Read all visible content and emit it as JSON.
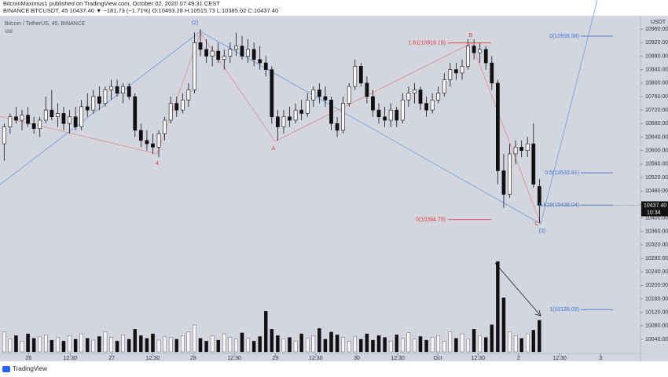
{
  "header": {
    "line1": "BitcoinMaximus1 published on TradingView.com, October 02, 2020 07:49:31 CEST",
    "line2": "BINANCE:BTCUSDT, 45  10437.40 ▼ −181.73 (−1.71%)  O:10493.28  H:10515.73  L:10385.02  C:10437.40"
  },
  "footer": "TradingView",
  "chart_data": {
    "type": "candlestick",
    "legend": "Bitcoin / TetherUS, 45, BINANCE",
    "volume_label": "Vol",
    "currency": "USDT",
    "xlim": [
      -0.7,
      107
    ],
    "ylim": [
      9998,
      11000
    ],
    "grid": false,
    "xticks": [
      {
        "value": 4.1,
        "label": "26"
      },
      {
        "value": 11.1,
        "label": "12:30"
      },
      {
        "value": 18.1,
        "label": "27"
      },
      {
        "value": 25.0,
        "label": "12:30"
      },
      {
        "value": 31.8,
        "label": "28"
      },
      {
        "value": 38.7,
        "label": "12:30"
      },
      {
        "value": 45.6,
        "label": "29"
      },
      {
        "value": 52.4,
        "label": "12:30"
      },
      {
        "value": 59.3,
        "label": "30"
      },
      {
        "value": 66.2,
        "label": "12:30"
      },
      {
        "value": 72.9,
        "label": "Oct"
      },
      {
        "value": 79.7,
        "label": "12:30"
      },
      {
        "value": 86.5,
        "label": "2"
      },
      {
        "value": 93.4,
        "label": "12:30"
      },
      {
        "value": 100.3,
        "label": "3"
      }
    ],
    "yticks": [
      {
        "value": 10960,
        "label": "10960.00"
      },
      {
        "value": 10920,
        "label": "10920.00"
      },
      {
        "value": 10880,
        "label": "10880.00"
      },
      {
        "value": 10840,
        "label": "10840.00"
      },
      {
        "value": 10800,
        "label": "10800.00"
      },
      {
        "value": 10760,
        "label": "10760.00"
      },
      {
        "value": 10720,
        "label": "10720.00"
      },
      {
        "value": 10680,
        "label": "10680.00"
      },
      {
        "value": 10640,
        "label": "10640.00"
      },
      {
        "value": 10600,
        "label": "10600.00"
      },
      {
        "value": 10560,
        "label": "10560.00"
      },
      {
        "value": 10520,
        "label": "10520.00"
      },
      {
        "value": 10480,
        "label": "10480.00"
      },
      {
        "value": 10440,
        "label": "10440.00"
      },
      {
        "value": 10400,
        "label": "10400.00"
      },
      {
        "value": 10360,
        "label": "10360.00"
      },
      {
        "value": 10320,
        "label": "10320.00"
      },
      {
        "value": 10280,
        "label": "10280.00"
      },
      {
        "value": 10240,
        "label": "10240.00"
      },
      {
        "value": 10200,
        "label": "10200.00"
      },
      {
        "value": 10160,
        "label": "10160.00"
      },
      {
        "value": 10120,
        "label": "10120.00"
      },
      {
        "value": 10080,
        "label": "10080.00"
      },
      {
        "value": 10040,
        "label": "10040.00"
      }
    ],
    "last_price": {
      "value": 10437.4,
      "label": "10437.40"
    },
    "countdown": "10:34",
    "fib_red": [
      {
        "value": 10919.19,
        "label": "1.61(10919.19)"
      },
      {
        "value": 10394.79,
        "label": "0(10394.79)"
      }
    ],
    "fib_blue": [
      {
        "value": 10939.58,
        "label": "0(10939.58)"
      },
      {
        "value": 10533.81,
        "label": "0.5(10533.81)"
      },
      {
        "value": 10438.04,
        "label": "0.618(10438.04)"
      },
      {
        "value": 10128.03,
        "label": "1(10128.03)"
      }
    ],
    "wave_labels": [
      "(2)",
      "4",
      "A",
      "B",
      "C",
      "(3)"
    ],
    "ohlc": [
      [
        10620,
        10680,
        10570,
        10670
      ],
      [
        10670,
        10710,
        10650,
        10700
      ],
      [
        10700,
        10730,
        10680,
        10690
      ],
      [
        10690,
        10720,
        10660,
        10705
      ],
      [
        10705,
        10730,
        10670,
        10680
      ],
      [
        10680,
        10700,
        10650,
        10665
      ],
      [
        10665,
        10700,
        10640,
        10690
      ],
      [
        10690,
        10760,
        10680,
        10720
      ],
      [
        10720,
        10780,
        10690,
        10700
      ],
      [
        10700,
        10740,
        10670,
        10710
      ],
      [
        10710,
        10730,
        10660,
        10680
      ],
      [
        10680,
        10720,
        10650,
        10700
      ],
      [
        10700,
        10730,
        10660,
        10670
      ],
      [
        10670,
        10750,
        10660,
        10730
      ],
      [
        10730,
        10770,
        10700,
        10720
      ],
      [
        10720,
        10780,
        10710,
        10760
      ],
      [
        10760,
        10790,
        10720,
        10740
      ],
      [
        10740,
        10790,
        10730,
        10780
      ],
      [
        10780,
        10810,
        10750,
        10790
      ],
      [
        10790,
        10810,
        10760,
        10770
      ],
      [
        10770,
        10800,
        10740,
        10790
      ],
      [
        10790,
        10800,
        10750,
        10760
      ],
      [
        10760,
        10770,
        10640,
        10660
      ],
      [
        10660,
        10680,
        10610,
        10630
      ],
      [
        10630,
        10660,
        10600,
        10620
      ],
      [
        10620,
        10650,
        10590,
        10610
      ],
      [
        10610,
        10660,
        10580,
        10650
      ],
      [
        10650,
        10700,
        10630,
        10690
      ],
      [
        10690,
        10760,
        10680,
        10740
      ],
      [
        10740,
        10760,
        10700,
        10720
      ],
      [
        10720,
        10770,
        10710,
        10750
      ],
      [
        10750,
        10800,
        10730,
        10780
      ],
      [
        10780,
        10950,
        10770,
        10920
      ],
      [
        10920,
        10960,
        10880,
        10900
      ],
      [
        10900,
        10930,
        10860,
        10880
      ],
      [
        10880,
        10910,
        10850,
        10895
      ],
      [
        10895,
        10920,
        10860,
        10870
      ],
      [
        10870,
        10900,
        10840,
        10880
      ],
      [
        10880,
        10920,
        10860,
        10900
      ],
      [
        10900,
        10950,
        10880,
        10910
      ],
      [
        10910,
        10940,
        10870,
        10880
      ],
      [
        10880,
        10930,
        10860,
        10900
      ],
      [
        10900,
        10920,
        10850,
        10870
      ],
      [
        10870,
        10910,
        10840,
        10860
      ],
      [
        10860,
        10880,
        10820,
        10840
      ],
      [
        10840,
        10850,
        10680,
        10700
      ],
      [
        10700,
        10720,
        10630,
        10670
      ],
      [
        10670,
        10720,
        10650,
        10700
      ],
      [
        10700,
        10730,
        10670,
        10690
      ],
      [
        10690,
        10740,
        10680,
        10720
      ],
      [
        10720,
        10750,
        10690,
        10710
      ],
      [
        10710,
        10770,
        10700,
        10750
      ],
      [
        10750,
        10790,
        10730,
        10780
      ],
      [
        10780,
        10800,
        10740,
        10760
      ],
      [
        10760,
        10790,
        10730,
        10750
      ],
      [
        10750,
        10760,
        10660,
        10680
      ],
      [
        10680,
        10700,
        10640,
        10660
      ],
      [
        10660,
        10760,
        10650,
        10740
      ],
      [
        10740,
        10800,
        10730,
        10790
      ],
      [
        10790,
        10870,
        10780,
        10850
      ],
      [
        10850,
        10860,
        10790,
        10800
      ],
      [
        10800,
        10820,
        10740,
        10760
      ],
      [
        10760,
        10780,
        10700,
        10720
      ],
      [
        10720,
        10740,
        10680,
        10700
      ],
      [
        10700,
        10730,
        10670,
        10690
      ],
      [
        10690,
        10740,
        10670,
        10720
      ],
      [
        10720,
        10730,
        10670,
        10690
      ],
      [
        10690,
        10770,
        10680,
        10750
      ],
      [
        10750,
        10790,
        10730,
        10770
      ],
      [
        10770,
        10800,
        10740,
        10780
      ],
      [
        10780,
        10790,
        10720,
        10740
      ],
      [
        10740,
        10760,
        10700,
        10720
      ],
      [
        10720,
        10770,
        10710,
        10750
      ],
      [
        10750,
        10790,
        10740,
        10770
      ],
      [
        10770,
        10830,
        10760,
        10810
      ],
      [
        10810,
        10860,
        10790,
        10840
      ],
      [
        10840,
        10860,
        10810,
        10830
      ],
      [
        10830,
        10870,
        10810,
        10850
      ],
      [
        10850,
        10930,
        10840,
        10910
      ],
      [
        10910,
        10930,
        10870,
        10890
      ],
      [
        10890,
        10920,
        10860,
        10900
      ],
      [
        10900,
        10910,
        10840,
        10860
      ],
      [
        10860,
        10880,
        10780,
        10800
      ],
      [
        10800,
        10810,
        10500,
        10540
      ],
      [
        10540,
        10590,
        10430,
        10470
      ],
      [
        10470,
        10620,
        10460,
        10590
      ],
      [
        10590,
        10630,
        10560,
        10610
      ],
      [
        10610,
        10630,
        10580,
        10600
      ],
      [
        10600,
        10640,
        10580,
        10620
      ],
      [
        10620,
        10680,
        10490,
        10500
      ],
      [
        10493.28,
        10515.73,
        10385.02,
        10437.4
      ]
    ],
    "volume": [
      22,
      14,
      18,
      12,
      20,
      15,
      17,
      19,
      13,
      16,
      12,
      18,
      14,
      20,
      15,
      13,
      17,
      22,
      16,
      12,
      19,
      14,
      25,
      18,
      15,
      20,
      13,
      17,
      16,
      14,
      18,
      22,
      30,
      15,
      12,
      18,
      13,
      20,
      16,
      14,
      21,
      15,
      12,
      17,
      45,
      25,
      18,
      14,
      16,
      12,
      20,
      15,
      18,
      26,
      14,
      22,
      19,
      16,
      12,
      17,
      14,
      20,
      13,
      18,
      16,
      12,
      19,
      15,
      21,
      14,
      17,
      13,
      16,
      18,
      12,
      22,
      15,
      20,
      14,
      25,
      18,
      16,
      30,
      100,
      60,
      22,
      18,
      15,
      20,
      24,
      35
    ]
  }
}
